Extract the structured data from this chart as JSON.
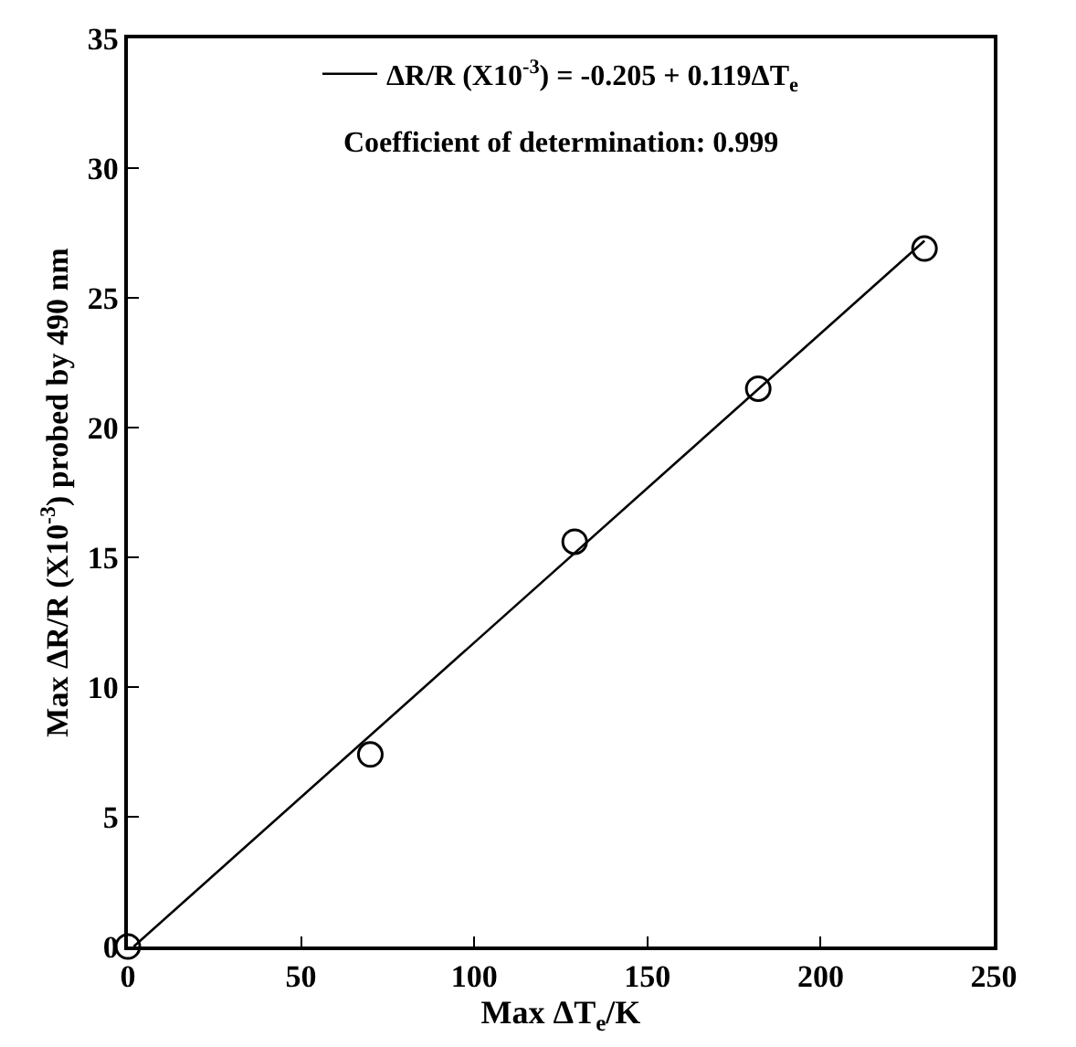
{
  "chart_data": {
    "type": "scatter",
    "xlabel": "Max ΔT$_{e}$/K",
    "ylabel": "Max ΔR/R (X10$^{-3}$) probed by 490 nm",
    "x": [
      0,
      70,
      129,
      182,
      230
    ],
    "series": [
      {
        "color": "#000000",
        "marker": "circle",
        "values": [
          0,
          7.4,
          15.6,
          21.5,
          26.9
        ]
      },
      {
        "type": "line",
        "name": "ΔR/R (X10$^{-3}$) = -0.205 + 0.119ΔT$_{e}$",
        "color": "#000000",
        "marker": "none",
        "line_style": "solid",
        "x": [
          1.7,
          230
        ],
        "values": [
          0,
          27.2
        ]
      }
    ],
    "annotations": [
      "Coefficient of determination: 0.999"
    ],
    "xlim": [
      0,
      250
    ],
    "xticks": [
      0,
      50,
      100,
      150,
      200,
      250
    ],
    "ylim": [
      0,
      35
    ],
    "yticks": [
      0,
      5,
      10,
      15,
      20,
      25,
      30,
      35
    ],
    "grid": false,
    "legend": "top"
  }
}
